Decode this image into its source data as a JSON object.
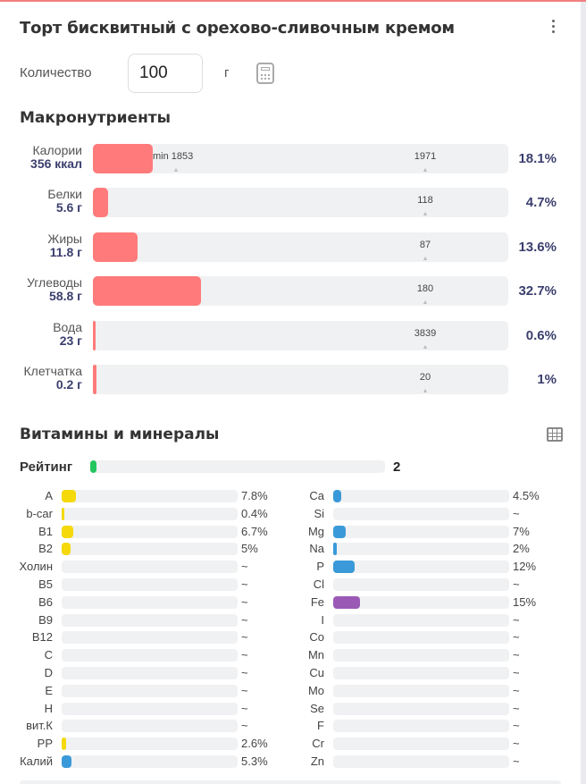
{
  "header": {
    "title": "Торт бисквитный с орехово-сливочным кремом"
  },
  "quantity": {
    "label": "Количество",
    "value": "100",
    "unit": "г"
  },
  "macros": {
    "heading": "Макронутриенты",
    "items": [
      {
        "name": "Калории",
        "value": "356 ккал",
        "fraction": 0.181,
        "min_label": "min 1853",
        "marker": "1971",
        "percent": "18.1%"
      },
      {
        "name": "Белки",
        "value": "5.6 г",
        "fraction": 0.047,
        "marker": "118",
        "percent": "4.7%"
      },
      {
        "name": "Жиры",
        "value": "11.8 г",
        "fraction": 0.136,
        "marker": "87",
        "percent": "13.6%"
      },
      {
        "name": "Углеводы",
        "value": "58.8 г",
        "fraction": 0.327,
        "marker": "180",
        "percent": "32.7%"
      },
      {
        "name": "Вода",
        "value": "23 г",
        "fraction": 0.006,
        "marker": "3839",
        "percent": "0.6%"
      },
      {
        "name": "Клетчатка",
        "value": "0.2 г",
        "fraction": 0.01,
        "marker": "20",
        "percent": "1%"
      }
    ]
  },
  "vitamins": {
    "heading": "Витамины и минералы",
    "rating_label": "Рейтинг",
    "rating_value": "2",
    "left": [
      {
        "name": "A",
        "percent": "7.8%",
        "fraction": 0.078,
        "color": "#f5d90a"
      },
      {
        "name": "b-car",
        "percent": "0.4%",
        "fraction": 0.004,
        "color": "#f5d90a"
      },
      {
        "name": "B1",
        "percent": "6.7%",
        "fraction": 0.067,
        "color": "#f5d90a"
      },
      {
        "name": "B2",
        "percent": "5%",
        "fraction": 0.05,
        "color": "#f5d90a"
      },
      {
        "name": "Холин",
        "percent": "~",
        "fraction": 0,
        "color": "#f5d90a"
      },
      {
        "name": "B5",
        "percent": "~",
        "fraction": 0,
        "color": "#f5d90a"
      },
      {
        "name": "B6",
        "percent": "~",
        "fraction": 0,
        "color": "#f5d90a"
      },
      {
        "name": "B9",
        "percent": "~",
        "fraction": 0,
        "color": "#f5d90a"
      },
      {
        "name": "B12",
        "percent": "~",
        "fraction": 0,
        "color": "#f5d90a"
      },
      {
        "name": "C",
        "percent": "~",
        "fraction": 0,
        "color": "#f5d90a"
      },
      {
        "name": "D",
        "percent": "~",
        "fraction": 0,
        "color": "#f5d90a"
      },
      {
        "name": "E",
        "percent": "~",
        "fraction": 0,
        "color": "#f5d90a"
      },
      {
        "name": "H",
        "percent": "~",
        "fraction": 0,
        "color": "#f5d90a"
      },
      {
        "name": "вит.К",
        "percent": "~",
        "fraction": 0,
        "color": "#f5d90a"
      },
      {
        "name": "PP",
        "percent": "2.6%",
        "fraction": 0.026,
        "color": "#f5d90a"
      },
      {
        "name": "Калий",
        "percent": "5.3%",
        "fraction": 0.053,
        "color": "#3a9ad9"
      }
    ],
    "right": [
      {
        "name": "Ca",
        "percent": "4.5%",
        "fraction": 0.045,
        "color": "#3a9ad9"
      },
      {
        "name": "Si",
        "percent": "~",
        "fraction": 0,
        "color": "#3a9ad9"
      },
      {
        "name": "Mg",
        "percent": "7%",
        "fraction": 0.07,
        "color": "#3a9ad9"
      },
      {
        "name": "Na",
        "percent": "2%",
        "fraction": 0.02,
        "color": "#3a9ad9"
      },
      {
        "name": "P",
        "percent": "12%",
        "fraction": 0.12,
        "color": "#3a9ad9"
      },
      {
        "name": "Cl",
        "percent": "~",
        "fraction": 0,
        "color": "#3a9ad9"
      },
      {
        "name": "Fe",
        "percent": "15%",
        "fraction": 0.15,
        "color": "#9b59b6"
      },
      {
        "name": "I",
        "percent": "~",
        "fraction": 0,
        "color": "#3a9ad9"
      },
      {
        "name": "Co",
        "percent": "~",
        "fraction": 0,
        "color": "#3a9ad9"
      },
      {
        "name": "Mn",
        "percent": "~",
        "fraction": 0,
        "color": "#3a9ad9"
      },
      {
        "name": "Cu",
        "percent": "~",
        "fraction": 0,
        "color": "#3a9ad9"
      },
      {
        "name": "Mo",
        "percent": "~",
        "fraction": 0,
        "color": "#3a9ad9"
      },
      {
        "name": "Se",
        "percent": "~",
        "fraction": 0,
        "color": "#3a9ad9"
      },
      {
        "name": "F",
        "percent": "~",
        "fraction": 0,
        "color": "#3a9ad9"
      },
      {
        "name": "Cr",
        "percent": "~",
        "fraction": 0,
        "color": "#3a9ad9"
      },
      {
        "name": "Zn",
        "percent": "~",
        "fraction": 0,
        "color": "#3a9ad9"
      }
    ]
  },
  "icons": {
    "menu": "more-vertical-icon",
    "calculator": "calculator-icon",
    "table": "table-grid-icon"
  }
}
